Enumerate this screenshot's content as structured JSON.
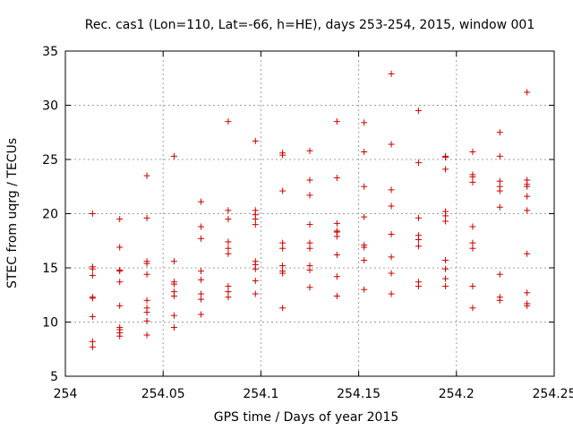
{
  "chart_data": {
    "type": "scatter",
    "title": "Rec. cas1 (Lon=110, Lat=-66, h=HE), days 253-254, 2015, window 001",
    "xlabel": "GPS time / Days of year 2015",
    "ylabel": "STEC from uqrg / TECUs",
    "xlim": [
      254,
      254.25
    ],
    "ylim": [
      5,
      35
    ],
    "x_ticks": [
      254,
      254.05,
      254.1,
      254.15,
      254.2,
      254.25
    ],
    "x_tick_labels": [
      "254",
      "254.05",
      "254.1",
      "254.15",
      "254.2",
      "254.25"
    ],
    "y_ticks": [
      5,
      10,
      15,
      20,
      25,
      30,
      35
    ],
    "y_tick_labels": [
      "5",
      "10",
      "15",
      "20",
      "25",
      "30",
      "35"
    ],
    "grid": true,
    "marker": "+",
    "marker_color": "#cc0000",
    "series": [
      {
        "name": "STEC",
        "points": [
          [
            254.0139,
            20.0
          ],
          [
            254.0139,
            15.1
          ],
          [
            254.0139,
            14.9
          ],
          [
            254.0139,
            14.3
          ],
          [
            254.0139,
            12.3
          ],
          [
            254.0139,
            12.2
          ],
          [
            254.0139,
            10.5
          ],
          [
            254.0139,
            8.2
          ],
          [
            254.0139,
            7.7
          ],
          [
            254.0278,
            19.5
          ],
          [
            254.0278,
            16.9
          ],
          [
            254.0278,
            14.8
          ],
          [
            254.0278,
            14.7
          ],
          [
            254.0278,
            13.7
          ],
          [
            254.0278,
            11.5
          ],
          [
            254.0278,
            9.5
          ],
          [
            254.0278,
            9.3
          ],
          [
            254.0278,
            9.0
          ],
          [
            254.0278,
            8.7
          ],
          [
            254.0417,
            23.5
          ],
          [
            254.0417,
            19.6
          ],
          [
            254.0417,
            15.6
          ],
          [
            254.0417,
            15.4
          ],
          [
            254.0417,
            14.4
          ],
          [
            254.0417,
            12.0
          ],
          [
            254.0417,
            11.3
          ],
          [
            254.0417,
            10.9
          ],
          [
            254.0417,
            10.1
          ],
          [
            254.0417,
            8.8
          ],
          [
            254.0556,
            25.3
          ],
          [
            254.0556,
            15.6
          ],
          [
            254.0556,
            13.7
          ],
          [
            254.0556,
            13.5
          ],
          [
            254.0556,
            12.8
          ],
          [
            254.0556,
            12.4
          ],
          [
            254.0556,
            10.6
          ],
          [
            254.0556,
            9.5
          ],
          [
            254.0694,
            21.1
          ],
          [
            254.0694,
            18.8
          ],
          [
            254.0694,
            17.7
          ],
          [
            254.0694,
            14.7
          ],
          [
            254.0694,
            13.9
          ],
          [
            254.0694,
            12.6
          ],
          [
            254.0694,
            12.1
          ],
          [
            254.0694,
            10.7
          ],
          [
            254.0833,
            28.5
          ],
          [
            254.0833,
            20.3
          ],
          [
            254.0833,
            19.5
          ],
          [
            254.0833,
            17.4
          ],
          [
            254.0833,
            16.8
          ],
          [
            254.0833,
            16.3
          ],
          [
            254.0833,
            13.3
          ],
          [
            254.0833,
            12.8
          ],
          [
            254.0833,
            12.3
          ],
          [
            254.0972,
            26.7
          ],
          [
            254.0972,
            20.3
          ],
          [
            254.0972,
            19.9
          ],
          [
            254.0972,
            19.5
          ],
          [
            254.0972,
            19.0
          ],
          [
            254.0972,
            15.6
          ],
          [
            254.0972,
            15.3
          ],
          [
            254.0972,
            14.9
          ],
          [
            254.0972,
            13.8
          ],
          [
            254.0972,
            12.6
          ],
          [
            254.1111,
            25.6
          ],
          [
            254.1111,
            25.4
          ],
          [
            254.1111,
            22.1
          ],
          [
            254.1111,
            17.3
          ],
          [
            254.1111,
            16.8
          ],
          [
            254.1111,
            15.2
          ],
          [
            254.1111,
            14.7
          ],
          [
            254.1111,
            14.5
          ],
          [
            254.1111,
            11.3
          ],
          [
            254.125,
            25.8
          ],
          [
            254.125,
            23.1
          ],
          [
            254.125,
            21.7
          ],
          [
            254.125,
            19.0
          ],
          [
            254.125,
            17.3
          ],
          [
            254.125,
            16.8
          ],
          [
            254.125,
            15.2
          ],
          [
            254.125,
            14.8
          ],
          [
            254.125,
            13.2
          ],
          [
            254.1389,
            28.5
          ],
          [
            254.1389,
            23.3
          ],
          [
            254.1389,
            19.1
          ],
          [
            254.1389,
            18.4
          ],
          [
            254.1389,
            18.3
          ],
          [
            254.1389,
            17.9
          ],
          [
            254.1389,
            16.2
          ],
          [
            254.1389,
            14.2
          ],
          [
            254.1389,
            12.4
          ],
          [
            254.1528,
            28.4
          ],
          [
            254.1528,
            25.7
          ],
          [
            254.1528,
            22.5
          ],
          [
            254.1528,
            19.7
          ],
          [
            254.1528,
            17.1
          ],
          [
            254.1528,
            16.9
          ],
          [
            254.1528,
            15.7
          ],
          [
            254.1528,
            13.0
          ],
          [
            254.1667,
            32.9
          ],
          [
            254.1667,
            26.4
          ],
          [
            254.1667,
            22.2
          ],
          [
            254.1667,
            20.7
          ],
          [
            254.1667,
            18.1
          ],
          [
            254.1667,
            16.0
          ],
          [
            254.1667,
            14.5
          ],
          [
            254.1667,
            12.6
          ],
          [
            254.1806,
            29.5
          ],
          [
            254.1806,
            24.7
          ],
          [
            254.1806,
            19.6
          ],
          [
            254.1806,
            18.0
          ],
          [
            254.1806,
            17.6
          ],
          [
            254.1806,
            17.0
          ],
          [
            254.1806,
            13.7
          ],
          [
            254.1806,
            13.3
          ],
          [
            254.1944,
            25.3
          ],
          [
            254.1944,
            25.2
          ],
          [
            254.1944,
            24.1
          ],
          [
            254.1944,
            20.2
          ],
          [
            254.1944,
            19.8
          ],
          [
            254.1944,
            19.3
          ],
          [
            254.1944,
            15.7
          ],
          [
            254.1944,
            14.9
          ],
          [
            254.1944,
            14.0
          ],
          [
            254.1944,
            13.3
          ],
          [
            254.2083,
            25.7
          ],
          [
            254.2083,
            23.6
          ],
          [
            254.2083,
            23.4
          ],
          [
            254.2083,
            22.9
          ],
          [
            254.2083,
            18.8
          ],
          [
            254.2083,
            17.3
          ],
          [
            254.2083,
            16.8
          ],
          [
            254.2083,
            13.3
          ],
          [
            254.2083,
            11.3
          ],
          [
            254.2222,
            27.5
          ],
          [
            254.2222,
            25.3
          ],
          [
            254.2222,
            23.0
          ],
          [
            254.2222,
            22.5
          ],
          [
            254.2222,
            22.1
          ],
          [
            254.2222,
            20.6
          ],
          [
            254.2222,
            14.4
          ],
          [
            254.2222,
            12.3
          ],
          [
            254.2222,
            12.0
          ],
          [
            254.2361,
            31.2
          ],
          [
            254.2361,
            23.1
          ],
          [
            254.2361,
            22.7
          ],
          [
            254.2361,
            22.5
          ],
          [
            254.2361,
            21.6
          ],
          [
            254.2361,
            20.3
          ],
          [
            254.2361,
            16.3
          ],
          [
            254.2361,
            12.7
          ],
          [
            254.2361,
            11.7
          ],
          [
            254.2361,
            11.5
          ]
        ]
      }
    ]
  }
}
